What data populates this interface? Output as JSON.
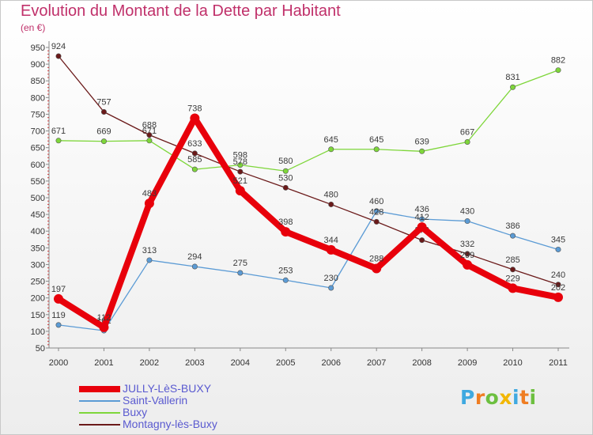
{
  "chart_data": {
    "type": "line",
    "title": "Evolution du Montant de la Dette par Habitant",
    "subtitle": "(en €)",
    "x": [
      "2000",
      "2001",
      "2002",
      "2003",
      "2004",
      "2005",
      "2006",
      "2007",
      "2008",
      "2009",
      "2010",
      "2011"
    ],
    "ylim": [
      50,
      950
    ],
    "yticks": [
      50,
      100,
      150,
      200,
      250,
      300,
      350,
      400,
      450,
      500,
      550,
      600,
      650,
      700,
      750,
      800,
      850,
      900,
      950
    ],
    "grid": false,
    "legend_position": "bottom-left",
    "series": [
      {
        "name": "JULLY-LèS-BUXY",
        "color": "#e8000b",
        "values": [
          197,
          112,
          483,
          738,
          521,
          398,
          344,
          288,
          412,
          299,
          229,
          202
        ]
      },
      {
        "name": "Saint-Vallerin",
        "color": "#5b9bd5",
        "values": [
          119,
          102,
          313,
          294,
          275,
          253,
          230,
          460,
          436,
          430,
          386,
          345
        ]
      },
      {
        "name": "Buxy",
        "color": "#7ed63a",
        "values": [
          671,
          669,
          671,
          585,
          598,
          580,
          645,
          645,
          639,
          667,
          831,
          882
        ]
      },
      {
        "name": "Montagny-lès-Buxy",
        "color": "#6b1a1a",
        "values": [
          924,
          757,
          688,
          633,
          578,
          530,
          480,
          428,
          373,
          332,
          285,
          240
        ]
      }
    ]
  },
  "brand": {
    "letters": [
      "P",
      "r",
      "o",
      "x",
      "i",
      "t",
      "i"
    ],
    "colors": [
      "#3fa9e0",
      "#ef7d22",
      "#6cbf3f",
      "#f2b705",
      "#3fa9e0",
      "#ef7d22",
      "#6cbf3f"
    ]
  }
}
